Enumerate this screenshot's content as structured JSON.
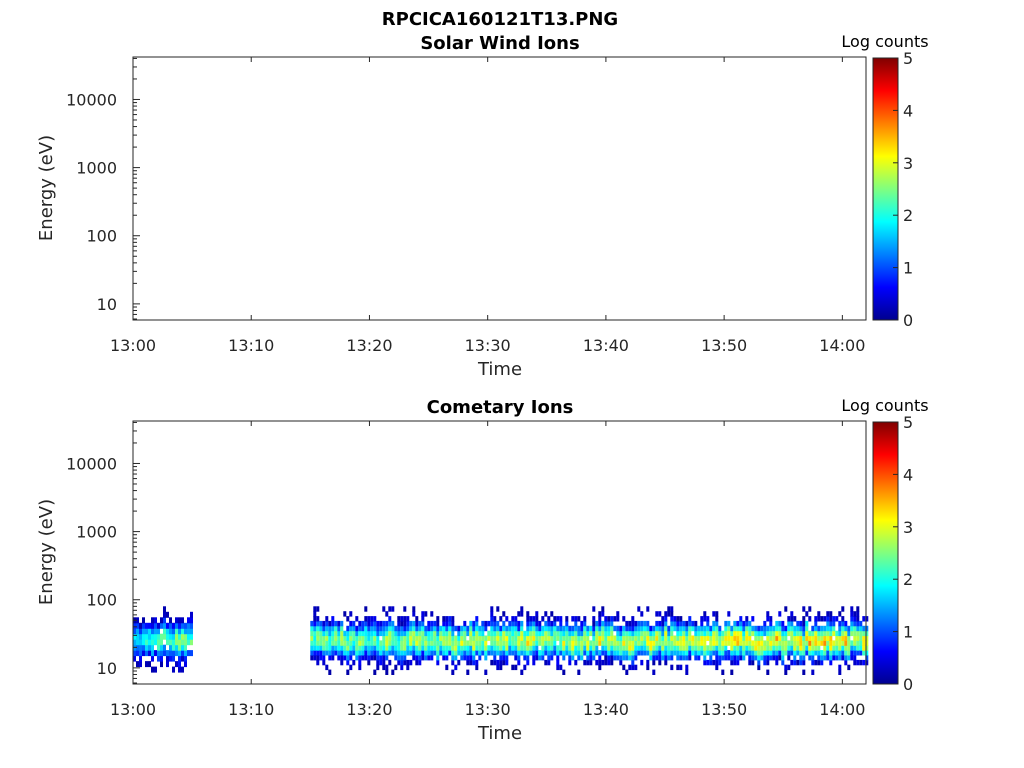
{
  "figure": {
    "title": "RPCICA160121T13.PNG"
  },
  "chart_data": [
    {
      "type": "heatmap",
      "title": "Solar Wind Ions",
      "xlabel": "Time",
      "ylabel": "Energy (eV)",
      "x_ticks": [
        "13:00",
        "13:10",
        "13:20",
        "13:30",
        "13:40",
        "13:50",
        "14:00"
      ],
      "x_range": [
        "13:00",
        "14:02"
      ],
      "y_ticks": [
        "10",
        "100",
        "1000",
        "10000"
      ],
      "y_scale": "log",
      "y_range": [
        5.8,
        42000
      ],
      "colorbar": {
        "label": "Log counts",
        "range": [
          0,
          5
        ],
        "ticks": [
          "0",
          "1",
          "2",
          "3",
          "4",
          "5"
        ],
        "colormap": "jet"
      },
      "segments": []
    },
    {
      "type": "heatmap",
      "title": "Cometary Ions",
      "xlabel": "Time",
      "ylabel": "Energy (eV)",
      "x_ticks": [
        "13:00",
        "13:10",
        "13:20",
        "13:30",
        "13:40",
        "13:50",
        "14:00"
      ],
      "x_range": [
        "13:00",
        "14:02"
      ],
      "y_ticks": [
        "10",
        "100",
        "1000",
        "10000"
      ],
      "y_scale": "log",
      "y_range": [
        5.8,
        42000
      ],
      "colorbar": {
        "label": "Log counts",
        "range": [
          0,
          5
        ],
        "ticks": [
          "0",
          "1",
          "2",
          "3",
          "4",
          "5"
        ],
        "colormap": "jet"
      },
      "segments": [
        {
          "start": "13:00",
          "end": "13:05",
          "energy_min_eV": 6,
          "energy_max_eV": 80,
          "peak_energy_eV": 25,
          "peak_log_counts": 2.4
        },
        {
          "start": "13:15",
          "end": "14:02",
          "energy_min_eV": 8,
          "energy_max_eV": 80,
          "peak_energy_eV": 25,
          "peak_log_counts": 3.2
        }
      ]
    }
  ]
}
